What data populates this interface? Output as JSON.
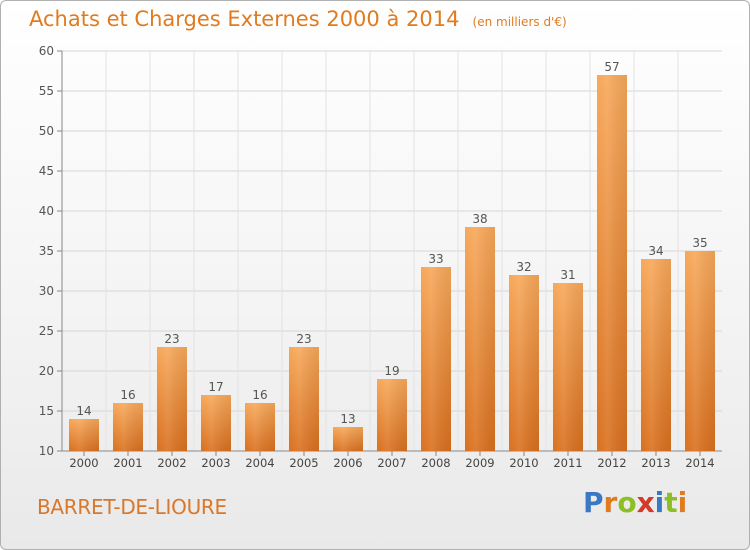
{
  "header": {
    "title": "Achats et Charges Externes 2000 à 2014",
    "unit": "(en milliers d'€)"
  },
  "footer": {
    "commune": "BARRET-DE-LIOURE",
    "brand": [
      "P",
      "r",
      "o",
      "x",
      "i",
      "t",
      "i"
    ]
  },
  "colors": {
    "accent": "#e07b20",
    "bar_top": "#f7a85a",
    "bar_bottom": "#d9701e",
    "brand_letters": [
      "#3a78c3",
      "#e07b20",
      "#8cbf26",
      "#d23a2a",
      "#3a78c3",
      "#8cbf26",
      "#e07b20"
    ]
  },
  "chart_data": {
    "type": "bar",
    "categories": [
      "2000",
      "2001",
      "2002",
      "2003",
      "2004",
      "2005",
      "2006",
      "2007",
      "2008",
      "2009",
      "2010",
      "2011",
      "2012",
      "2013",
      "2014"
    ],
    "values": [
      14,
      16,
      23,
      17,
      16,
      23,
      13,
      19,
      33,
      38,
      32,
      31,
      57,
      34,
      35
    ],
    "ylim": [
      10,
      60
    ],
    "yticks": [
      10,
      15,
      20,
      25,
      30,
      35,
      40,
      45,
      50,
      55,
      60
    ],
    "grid": true,
    "data_labels": true,
    "legend": "none"
  }
}
